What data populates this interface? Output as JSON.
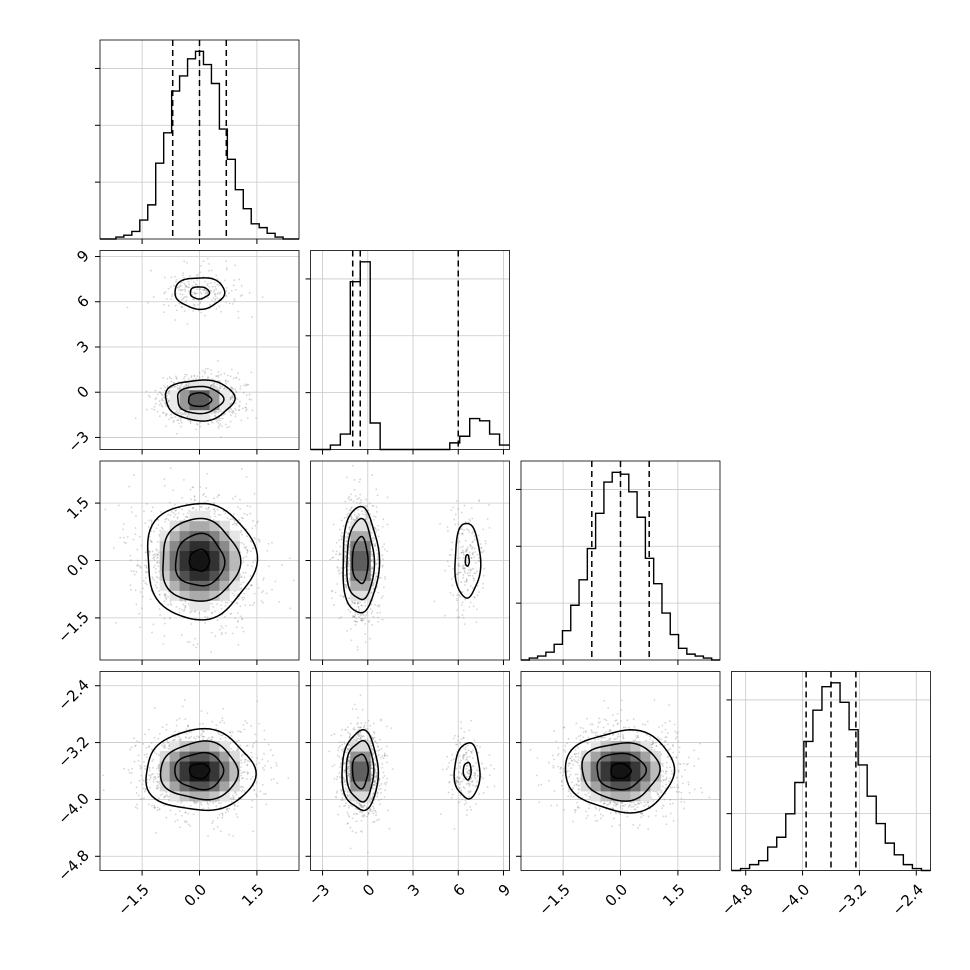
{
  "chart_data": {
    "type": "corner",
    "grid": true,
    "variables": [
      {
        "range": [
          -2.6,
          2.6
        ],
        "ticks": [
          -1.5,
          0.0,
          1.5
        ],
        "tick_labels": [
          "−1.5",
          "0.0",
          "1.5"
        ],
        "quantiles": [
          -0.7,
          0.0,
          0.7
        ],
        "hist": [
          0,
          0,
          0.01,
          0.02,
          0.04,
          0.1,
          0.18,
          0.4,
          0.56,
          0.78,
          0.86,
          0.95,
          0.99,
          0.92,
          0.82,
          0.58,
          0.42,
          0.26,
          0.16,
          0.08,
          0.06,
          0.03,
          0.01,
          0,
          0
        ]
      },
      {
        "range": [
          -3.8,
          9.4
        ],
        "ticks": [
          -3,
          0,
          3,
          6,
          9
        ],
        "tick_labels": [
          "−3",
          "0",
          "3",
          "6",
          "9"
        ],
        "quantiles": [
          -1.0,
          -0.5,
          6.0
        ],
        "hist": [
          0,
          0,
          0.02,
          0.07,
          0.76,
          0.85,
          0.12,
          0,
          0,
          0,
          0,
          0,
          0,
          0,
          0.03,
          0.06,
          0.14,
          0.13,
          0.07,
          0.02
        ]
      },
      {
        "range": [
          -2.6,
          2.6
        ],
        "ticks": [
          -1.5,
          0.0,
          1.5
        ],
        "tick_labels": [
          "−1.5",
          "0.0",
          "1.5"
        ],
        "quantiles": [
          -0.75,
          0.0,
          0.75
        ],
        "hist": [
          0,
          0.01,
          0.02,
          0.04,
          0.08,
          0.15,
          0.28,
          0.41,
          0.57,
          0.75,
          0.91,
          0.96,
          0.95,
          0.86,
          0.73,
          0.52,
          0.39,
          0.24,
          0.13,
          0.06,
          0.03,
          0.02,
          0.01,
          0
        ]
      },
      {
        "range": [
          -5.0,
          -2.2
        ],
        "ticks": [
          -4.8,
          -4.0,
          -3.2,
          -2.4
        ],
        "tick_labels": [
          "−4.8",
          "−4.0",
          "−3.2",
          "−2.4"
        ],
        "quantiles": [
          -3.95,
          -3.6,
          -3.25
        ],
        "hist": [
          0,
          0.01,
          0.03,
          0.05,
          0.12,
          0.17,
          0.29,
          0.45,
          0.66,
          0.82,
          0.94,
          0.96,
          0.86,
          0.72,
          0.54,
          0.38,
          0.24,
          0.14,
          0.08,
          0.03,
          0.01,
          0
        ]
      }
    ],
    "pairs": [
      {
        "x": 0,
        "y": 1,
        "modes": [
          {
            "cx": 0.0,
            "cy": -0.5,
            "sx": 0.5,
            "sy": 0.75,
            "w": 0.85,
            "levels": [
              1.8,
              1.2,
              0.6
            ]
          },
          {
            "cx": 0.0,
            "cy": 6.6,
            "sx": 0.5,
            "sy": 0.8,
            "w": 0.15,
            "levels": [
              1.3,
              0.5
            ]
          }
        ]
      },
      {
        "x": 0,
        "y": 2,
        "modes": [
          {
            "cx": 0.0,
            "cy": 0.0,
            "sx": 0.75,
            "sy": 0.8,
            "w": 1.0,
            "levels": [
              1.9,
              1.35,
              0.85,
              0.35
            ]
          }
        ]
      },
      {
        "x": 1,
        "y": 2,
        "modes": [
          {
            "cx": -0.5,
            "cy": 0.0,
            "sx": 0.65,
            "sy": 0.75,
            "w": 0.85,
            "levels": [
              1.85,
              1.4,
              0.8
            ]
          },
          {
            "cx": 6.6,
            "cy": 0.0,
            "sx": 0.65,
            "sy": 0.75,
            "w": 0.15,
            "levels": [
              1.3,
              0.2
            ]
          }
        ]
      },
      {
        "x": 0,
        "y": 3,
        "modes": [
          {
            "cx": 0.0,
            "cy": -3.6,
            "sx": 0.75,
            "sy": 0.3,
            "w": 1.0,
            "levels": [
              1.9,
              1.35,
              0.85,
              0.35
            ]
          }
        ]
      },
      {
        "x": 1,
        "y": 3,
        "modes": [
          {
            "cx": -0.5,
            "cy": -3.6,
            "sx": 0.65,
            "sy": 0.3,
            "w": 0.85,
            "levels": [
              1.85,
              1.4,
              0.8
            ]
          },
          {
            "cx": 6.6,
            "cy": -3.6,
            "sx": 0.65,
            "sy": 0.3,
            "w": 0.15,
            "levels": [
              1.3,
              0.4
            ]
          }
        ]
      },
      {
        "x": 2,
        "y": 3,
        "modes": [
          {
            "cx": 0.0,
            "cy": -3.6,
            "sx": 0.75,
            "sy": 0.3,
            "w": 1.0,
            "levels": [
              1.9,
              1.35,
              0.85,
              0.35
            ]
          }
        ]
      }
    ]
  }
}
